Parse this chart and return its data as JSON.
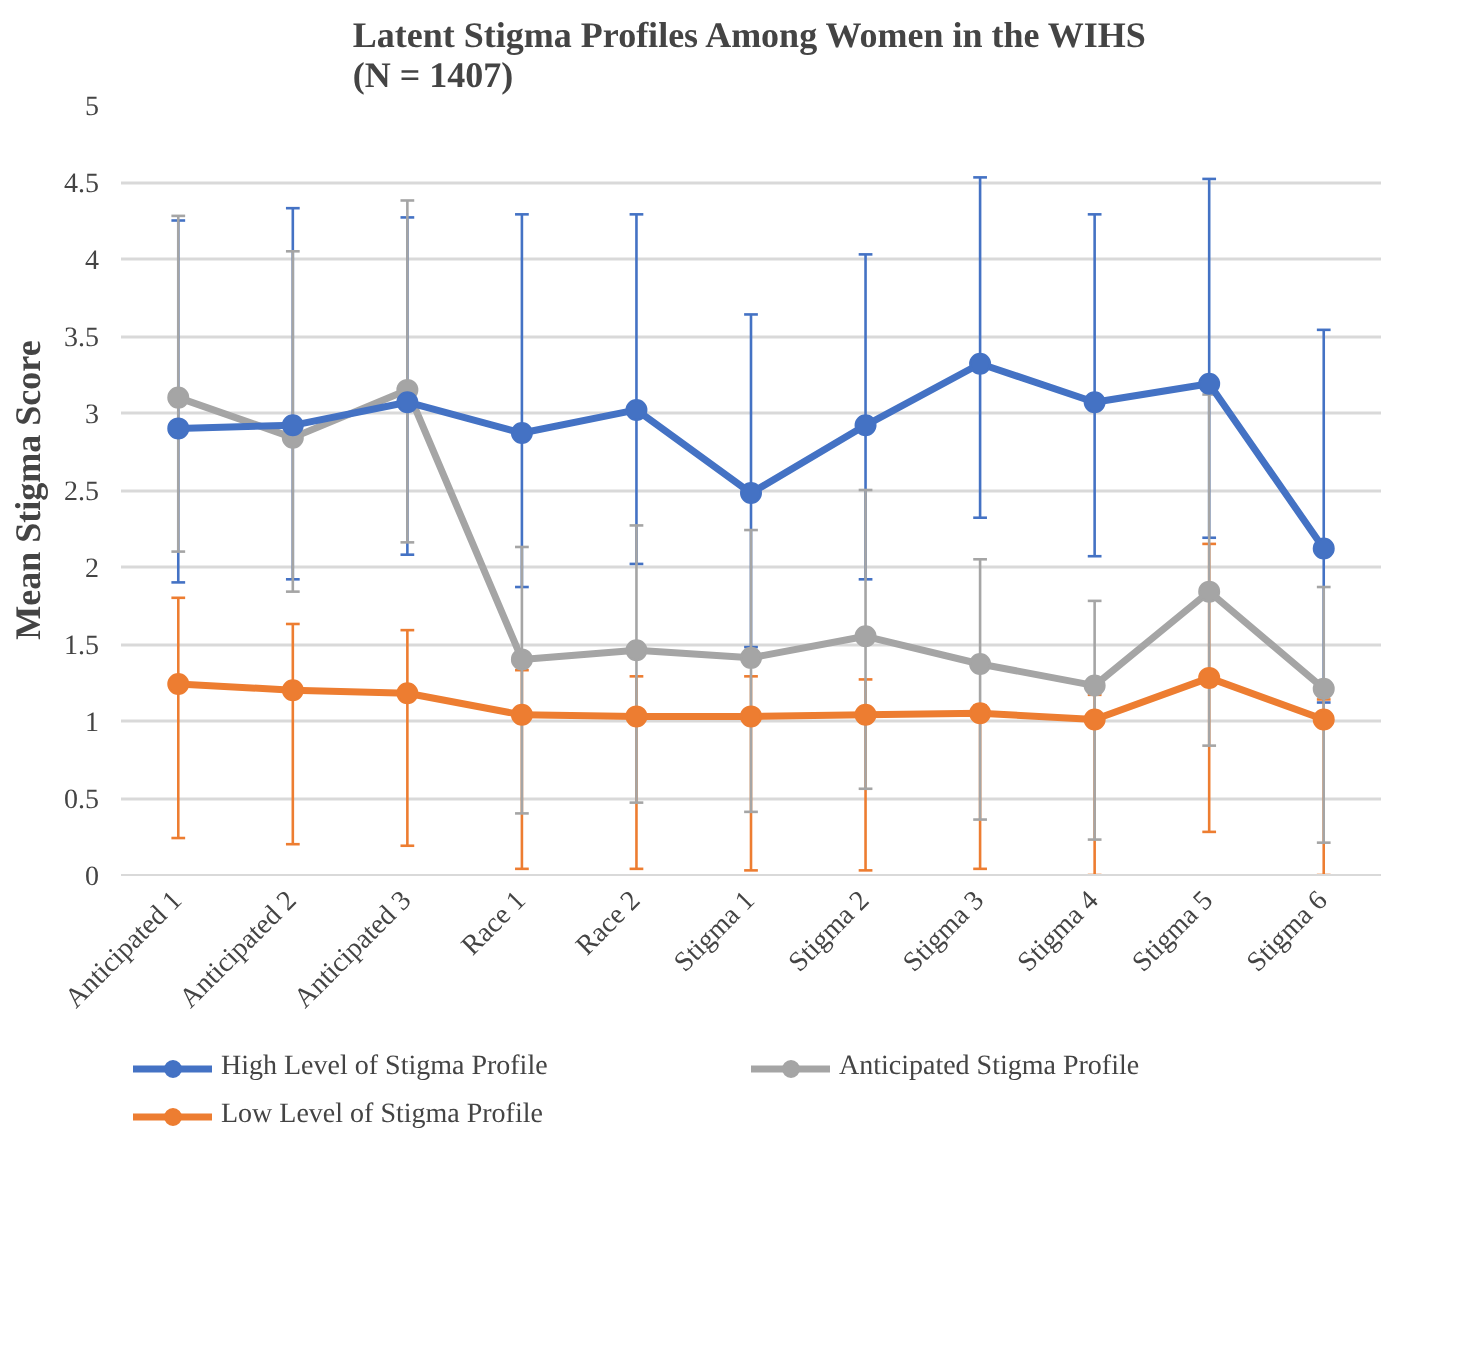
{
  "chart_data": {
    "type": "line",
    "title": "Latent Stigma Profiles Among Women in the WIHS\n(N = 1407)",
    "ylabel": "Mean Stigma Score",
    "categories": [
      "Anticipated 1",
      "Anticipated 2",
      "Anticipated 3",
      "Race 1",
      "Race 2",
      "Stigma 1",
      "Stigma 2",
      "Stigma 3",
      "Stigma 4",
      "Stigma 5",
      "Stigma 6"
    ],
    "ylim": [
      0,
      5
    ],
    "yticks": [
      0,
      0.5,
      1,
      1.5,
      2,
      2.5,
      3,
      3.5,
      4,
      4.5,
      5
    ],
    "grid": "y",
    "legend": "bottom",
    "marker": "circle",
    "line_style": "solid",
    "series": [
      {
        "name": "High Level of Stigma Profile",
        "color": "#4472c4",
        "values": [
          2.9,
          2.92,
          3.07,
          2.87,
          3.02,
          2.48,
          2.92,
          3.32,
          3.07,
          3.19,
          2.12
        ],
        "errors": [
          [
            1.9,
            4.25
          ],
          [
            1.92,
            4.33
          ],
          [
            2.08,
            4.27
          ],
          [
            1.87,
            4.29
          ],
          [
            2.02,
            4.29
          ],
          [
            1.48,
            3.64
          ],
          [
            1.92,
            4.03
          ],
          [
            2.32,
            4.53
          ],
          [
            2.07,
            4.29
          ],
          [
            2.19,
            4.52
          ],
          [
            1.12,
            3.54
          ]
        ]
      },
      {
        "name": "Low Level of Stigma Profile",
        "color": "#ed7d31",
        "values": [
          1.24,
          1.2,
          1.18,
          1.04,
          1.03,
          1.03,
          1.04,
          1.05,
          1.01,
          1.28,
          1.01
        ],
        "errors": [
          [
            0.24,
            1.8
          ],
          [
            0.2,
            1.63
          ],
          [
            0.19,
            1.59
          ],
          [
            0.04,
            1.33
          ],
          [
            0.04,
            1.29
          ],
          [
            0.03,
            1.29
          ],
          [
            0.03,
            1.27
          ],
          [
            0.04,
            1.1
          ],
          [
            0.0,
            1.17
          ],
          [
            0.28,
            2.15
          ],
          [
            0.0,
            1.14
          ]
        ]
      },
      {
        "name": "Anticipated Stigma Profile",
        "color": "#a5a5a5",
        "values": [
          3.1,
          2.84,
          3.15,
          1.4,
          1.46,
          1.41,
          1.55,
          1.37,
          1.23,
          1.84,
          1.21
        ],
        "errors": [
          [
            2.1,
            4.28
          ],
          [
            1.84,
            4.05
          ],
          [
            2.16,
            4.38
          ],
          [
            0.4,
            2.13
          ],
          [
            0.47,
            2.27
          ],
          [
            0.41,
            2.24
          ],
          [
            0.56,
            2.5
          ],
          [
            0.36,
            2.05
          ],
          [
            0.23,
            1.78
          ],
          [
            0.84,
            3.12
          ],
          [
            0.21,
            1.87
          ]
        ]
      }
    ]
  }
}
